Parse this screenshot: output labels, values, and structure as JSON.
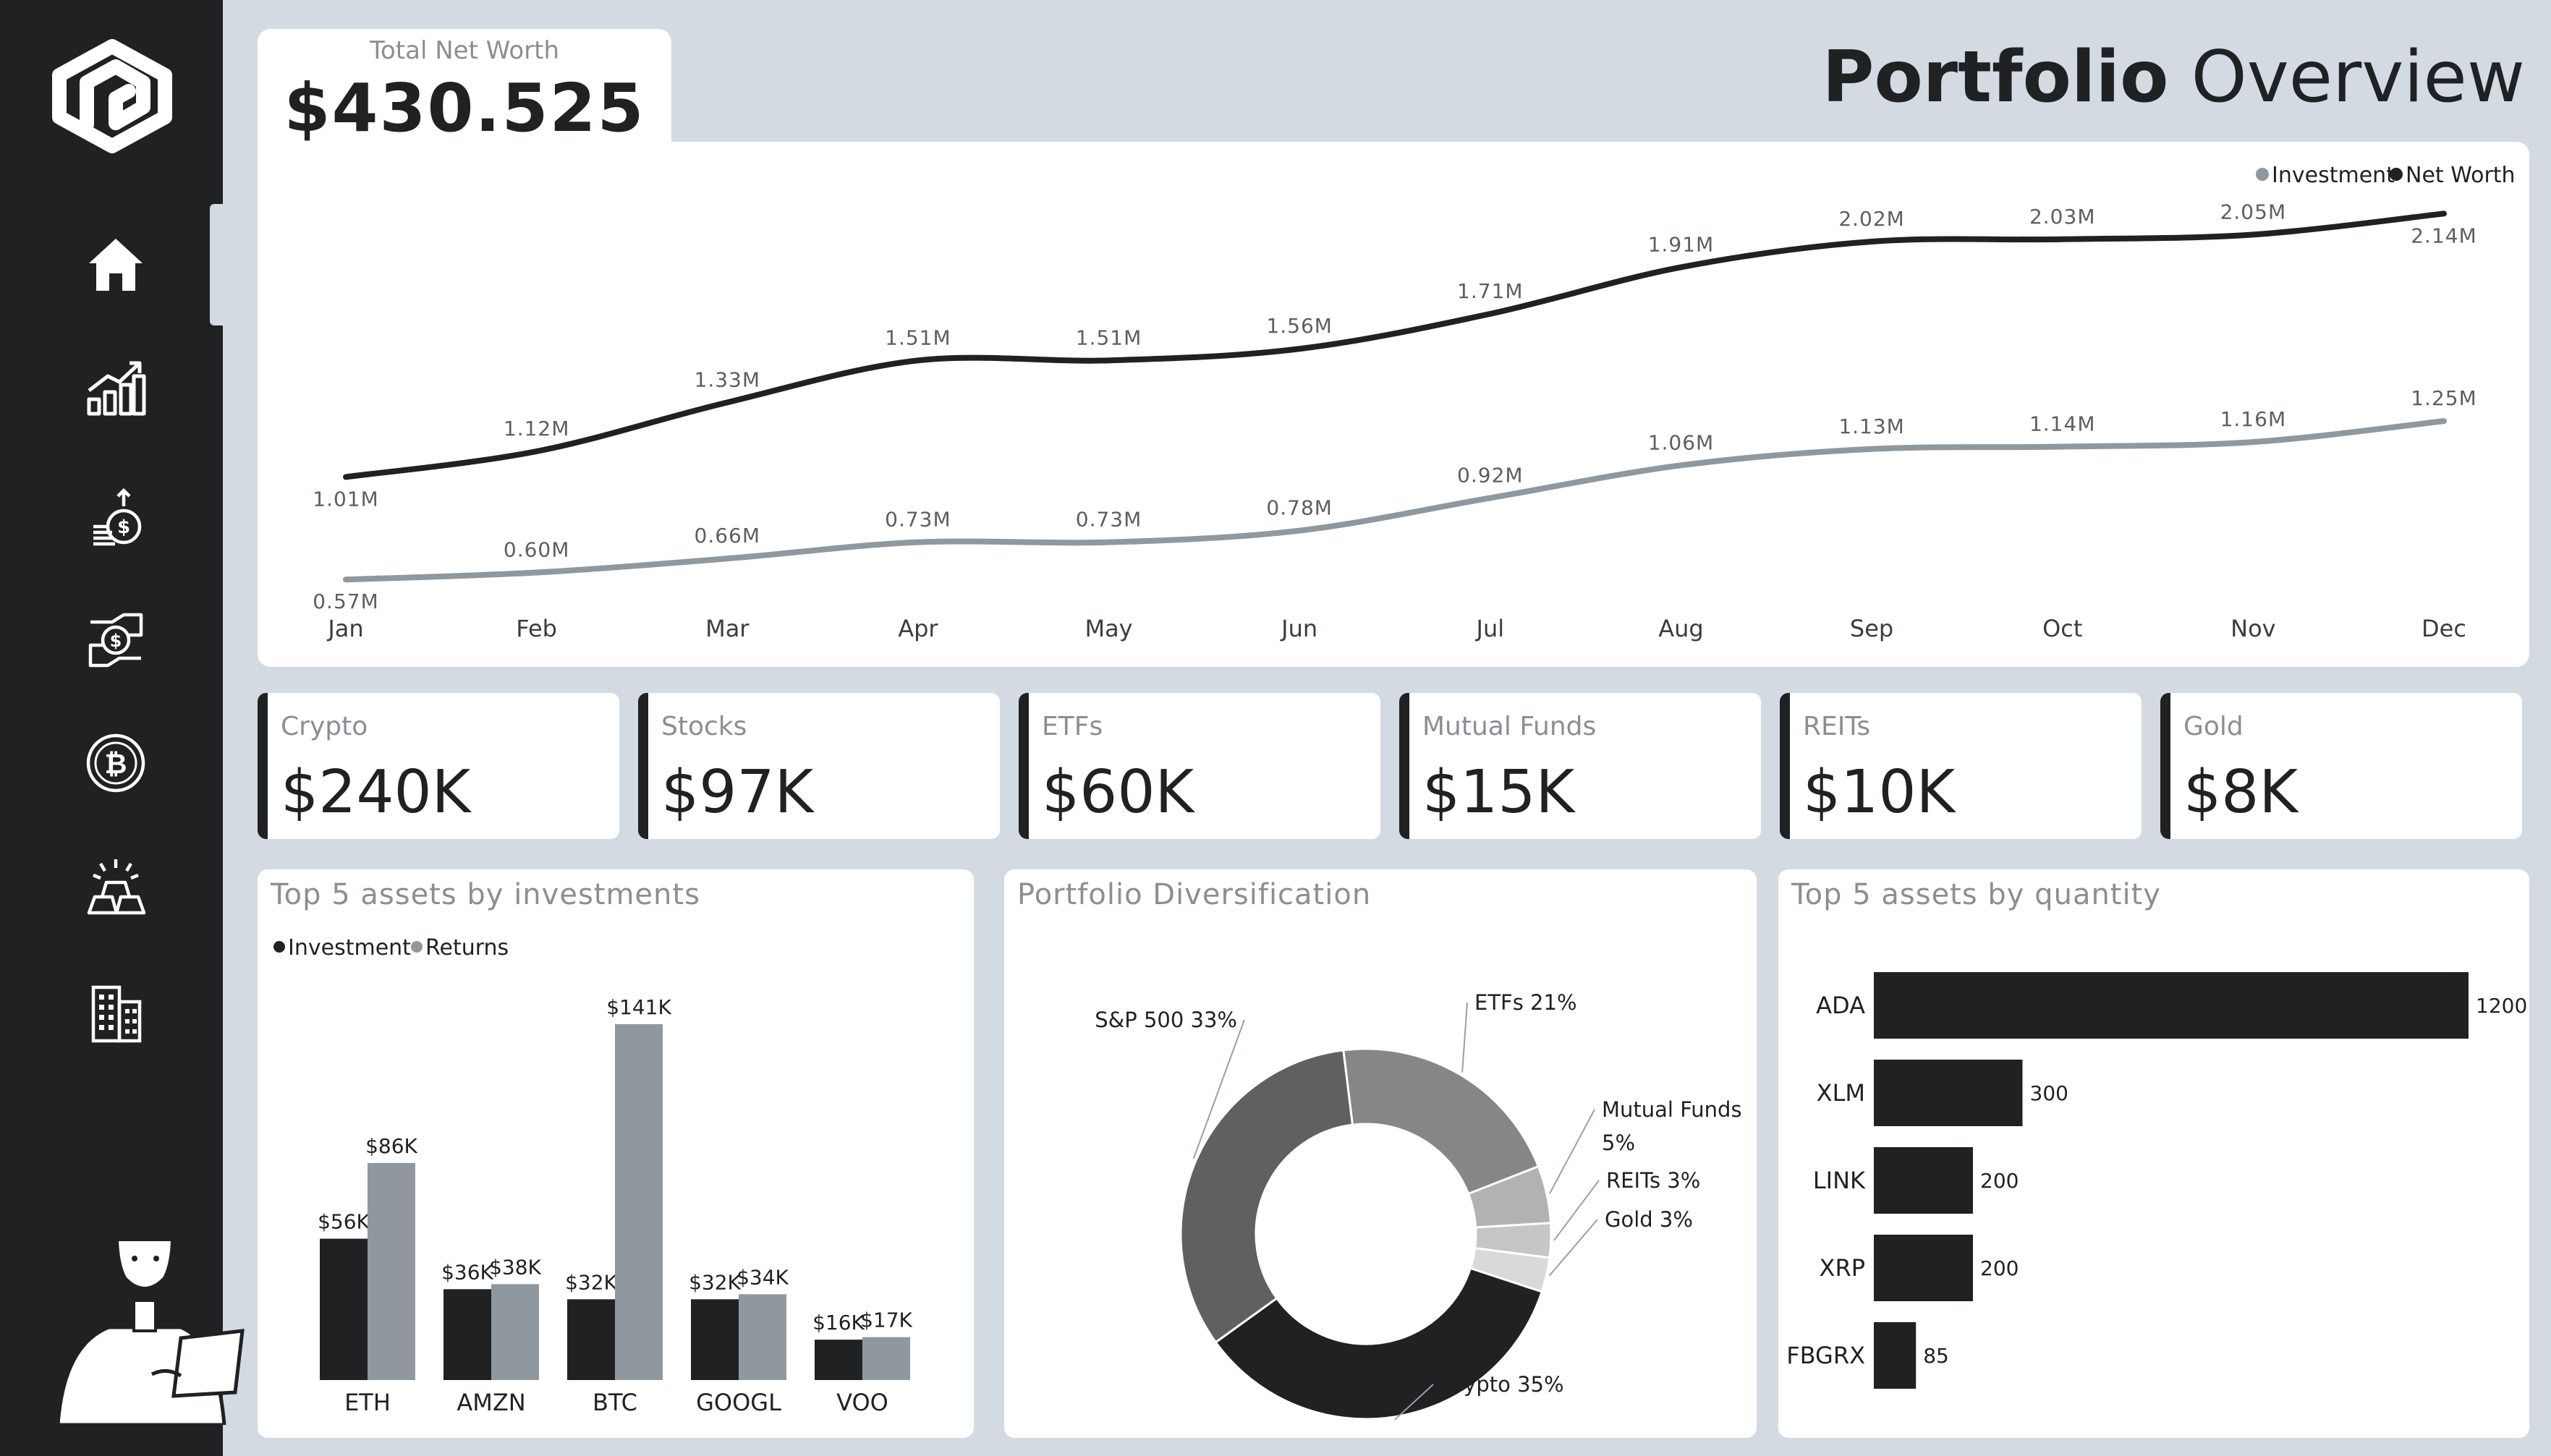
{
  "header": {
    "net_worth_label": "Total Net Worth",
    "net_worth_value": "$430.525",
    "title_bold": "Portfolio",
    "title_rest": " Overview"
  },
  "sidebar": {
    "items": [
      {
        "icon": "home-icon",
        "active": true
      },
      {
        "icon": "growth-chart-icon",
        "active": false
      },
      {
        "icon": "coins-icon",
        "active": false
      },
      {
        "icon": "money-hands-icon",
        "active": false
      },
      {
        "icon": "bitcoin-icon",
        "active": false
      },
      {
        "icon": "gold-bars-icon",
        "active": false
      },
      {
        "icon": "building-icon",
        "active": false
      }
    ]
  },
  "colors": {
    "dark": "#1f2123",
    "grey": "#8f989f",
    "bg": "#d3dae2"
  },
  "line_chart": {
    "legend": [
      "Investment",
      "Net Worth"
    ],
    "chart_data": {
      "type": "line",
      "categories": [
        "Jan",
        "Feb",
        "Mar",
        "Apr",
        "May",
        "Jun",
        "Jul",
        "Aug",
        "Sep",
        "Oct",
        "Nov",
        "Dec"
      ],
      "series": [
        {
          "name": "Net Worth",
          "values": [
            1.01,
            1.12,
            1.33,
            1.51,
            1.51,
            1.56,
            1.71,
            1.91,
            2.02,
            2.03,
            2.05,
            2.14
          ],
          "labels": [
            "1.01M",
            "1.12M",
            "1.33M",
            "1.51M",
            "1.51M",
            "1.56M",
            "1.71M",
            "1.91M",
            "2.02M",
            "2.03M",
            "2.05M",
            "2.14M"
          ]
        },
        {
          "name": "Investment",
          "values": [
            0.57,
            0.6,
            0.66,
            0.73,
            0.73,
            0.78,
            0.92,
            1.06,
            1.13,
            1.14,
            1.16,
            1.25
          ],
          "labels": [
            "0.57M",
            "0.60M",
            "0.66M",
            "0.73M",
            "0.73M",
            "0.78M",
            "0.92M",
            "1.06M",
            "1.13M",
            "1.14M",
            "1.16M",
            "1.25M"
          ]
        }
      ],
      "ylim": [
        0.4,
        2.2
      ],
      "grid": false,
      "legend_position": "top-right"
    }
  },
  "kpis": [
    {
      "label": "Crypto",
      "value": "$240K"
    },
    {
      "label": "Stocks",
      "value": "$97K"
    },
    {
      "label": "ETFs",
      "value": "$60K"
    },
    {
      "label": "Mutual Funds",
      "value": "$15K"
    },
    {
      "label": "REITs",
      "value": "$10K"
    },
    {
      "label": "Gold",
      "value": "$8K"
    }
  ],
  "bar_chart": {
    "title": "Top 5 assets by investments",
    "legend": [
      "Investment",
      "Returns"
    ],
    "chart_data": {
      "type": "bar",
      "categories": [
        "ETH",
        "AMZN",
        "BTC",
        "GOOGL",
        "VOO"
      ],
      "series": [
        {
          "name": "Investment",
          "values": [
            56,
            36,
            32,
            32,
            16
          ],
          "labels": [
            "$56K",
            "$36K",
            "$32K",
            "$32K",
            "$16K"
          ]
        },
        {
          "name": "Returns",
          "values": [
            86,
            38,
            141,
            34,
            17
          ],
          "labels": [
            "$86K",
            "$38K",
            "$141K",
            "$34K",
            "$17K"
          ]
        }
      ],
      "ylim": [
        0,
        145
      ]
    }
  },
  "donut_chart": {
    "title": "Portfolio Diversification",
    "chart_data": {
      "type": "pie",
      "slices": [
        {
          "label": "ETFs 21%",
          "value": 21,
          "color": "#868686"
        },
        {
          "label": "Mutual Funds",
          "label2": "5%",
          "value": 5,
          "color": "#b2b2b2"
        },
        {
          "label": "REITs 3%",
          "value": 3,
          "color": "#c6c6c6"
        },
        {
          "label": "Gold 3%",
          "value": 3,
          "color": "#d9d9d9"
        },
        {
          "label": "Crypto 35%",
          "value": 35,
          "color": "#1f2123"
        },
        {
          "label": "S&P 500 33%",
          "value": 33,
          "color": "#606060"
        }
      ]
    }
  },
  "hbar_chart": {
    "title": "Top 5 assets by quantity",
    "chart_data": {
      "type": "bar",
      "orientation": "horizontal",
      "categories": [
        "ADA",
        "XLM",
        "LINK",
        "XRP",
        "FBGRX"
      ],
      "values": [
        1200,
        300,
        200,
        200,
        85
      ],
      "labels": [
        "1200",
        "300",
        "200",
        "200",
        "85"
      ]
    }
  }
}
